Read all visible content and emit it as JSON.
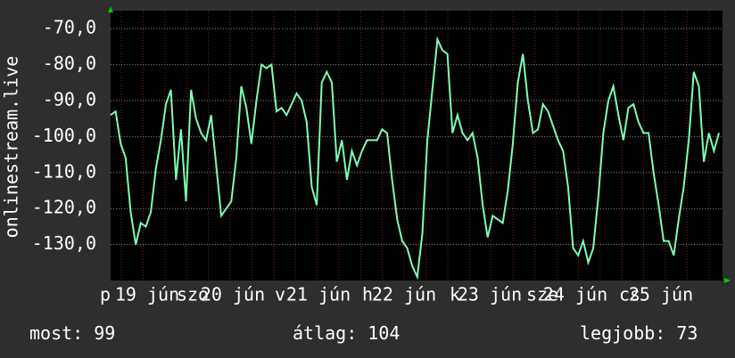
{
  "chart_data": {
    "type": "line",
    "ylabel": "onlinestream.live",
    "day_labels": [
      "p",
      "szo",
      "v",
      "h",
      "k",
      "sze",
      "cs"
    ],
    "date_labels": [
      "19 jún",
      "20 jún",
      "21 jún",
      "22 jún",
      "23 jún",
      "24 jún",
      "25 jún"
    ],
    "ylim": [
      -140,
      -65
    ],
    "yticks": [
      {
        "value": -70,
        "label": "-70,0"
      },
      {
        "value": -80,
        "label": "-80,0"
      },
      {
        "value": -90,
        "label": "-90,0"
      },
      {
        "value": -100,
        "label": "-100,0"
      },
      {
        "value": -110,
        "label": "-110,0"
      },
      {
        "value": -120,
        "label": "-120,0"
      },
      {
        "value": -130,
        "label": "-130,0"
      }
    ],
    "grid": true,
    "color": "#7dffb4",
    "values": [
      -94,
      -93,
      -102,
      -106,
      -121,
      -130,
      -124,
      -125,
      -121,
      -109,
      -101,
      -91,
      -87,
      -112,
      -98,
      -118,
      -87,
      -95,
      -99,
      -101,
      -94,
      -108,
      -122,
      -120,
      -118,
      -106,
      -86,
      -92,
      -102,
      -90,
      -80,
      -81,
      -80,
      -93,
      -92,
      -94,
      -91,
      -88,
      -90,
      -96,
      -114,
      -119,
      -85,
      -82,
      -85,
      -107,
      -101,
      -112,
      -104,
      -108,
      -104,
      -101,
      -101,
      -101,
      -98,
      -99,
      -112,
      -123,
      -129,
      -131,
      -136,
      -139,
      -127,
      -101,
      -87,
      -73,
      -76,
      -77,
      -99,
      -94,
      -99,
      -101,
      -99,
      -106,
      -119,
      -128,
      -122,
      -123,
      -124,
      -115,
      -102,
      -85,
      -77,
      -90,
      -99,
      -98,
      -91,
      -93,
      -97,
      -101,
      -104,
      -114,
      -131,
      -133,
      -129,
      -135,
      -131,
      -117,
      -99,
      -90,
      -86,
      -94,
      -101,
      -92,
      -91,
      -96,
      -99,
      -99,
      -110,
      -119,
      -129,
      -129,
      -133,
      -123,
      -114,
      -101,
      -82,
      -86,
      -107,
      -99,
      -104,
      -99
    ],
    "stats": [
      {
        "label": "most:",
        "value": 99
      },
      {
        "label": "átlag:",
        "value": 104
      },
      {
        "label": "legjobb:",
        "value": 73
      }
    ]
  }
}
